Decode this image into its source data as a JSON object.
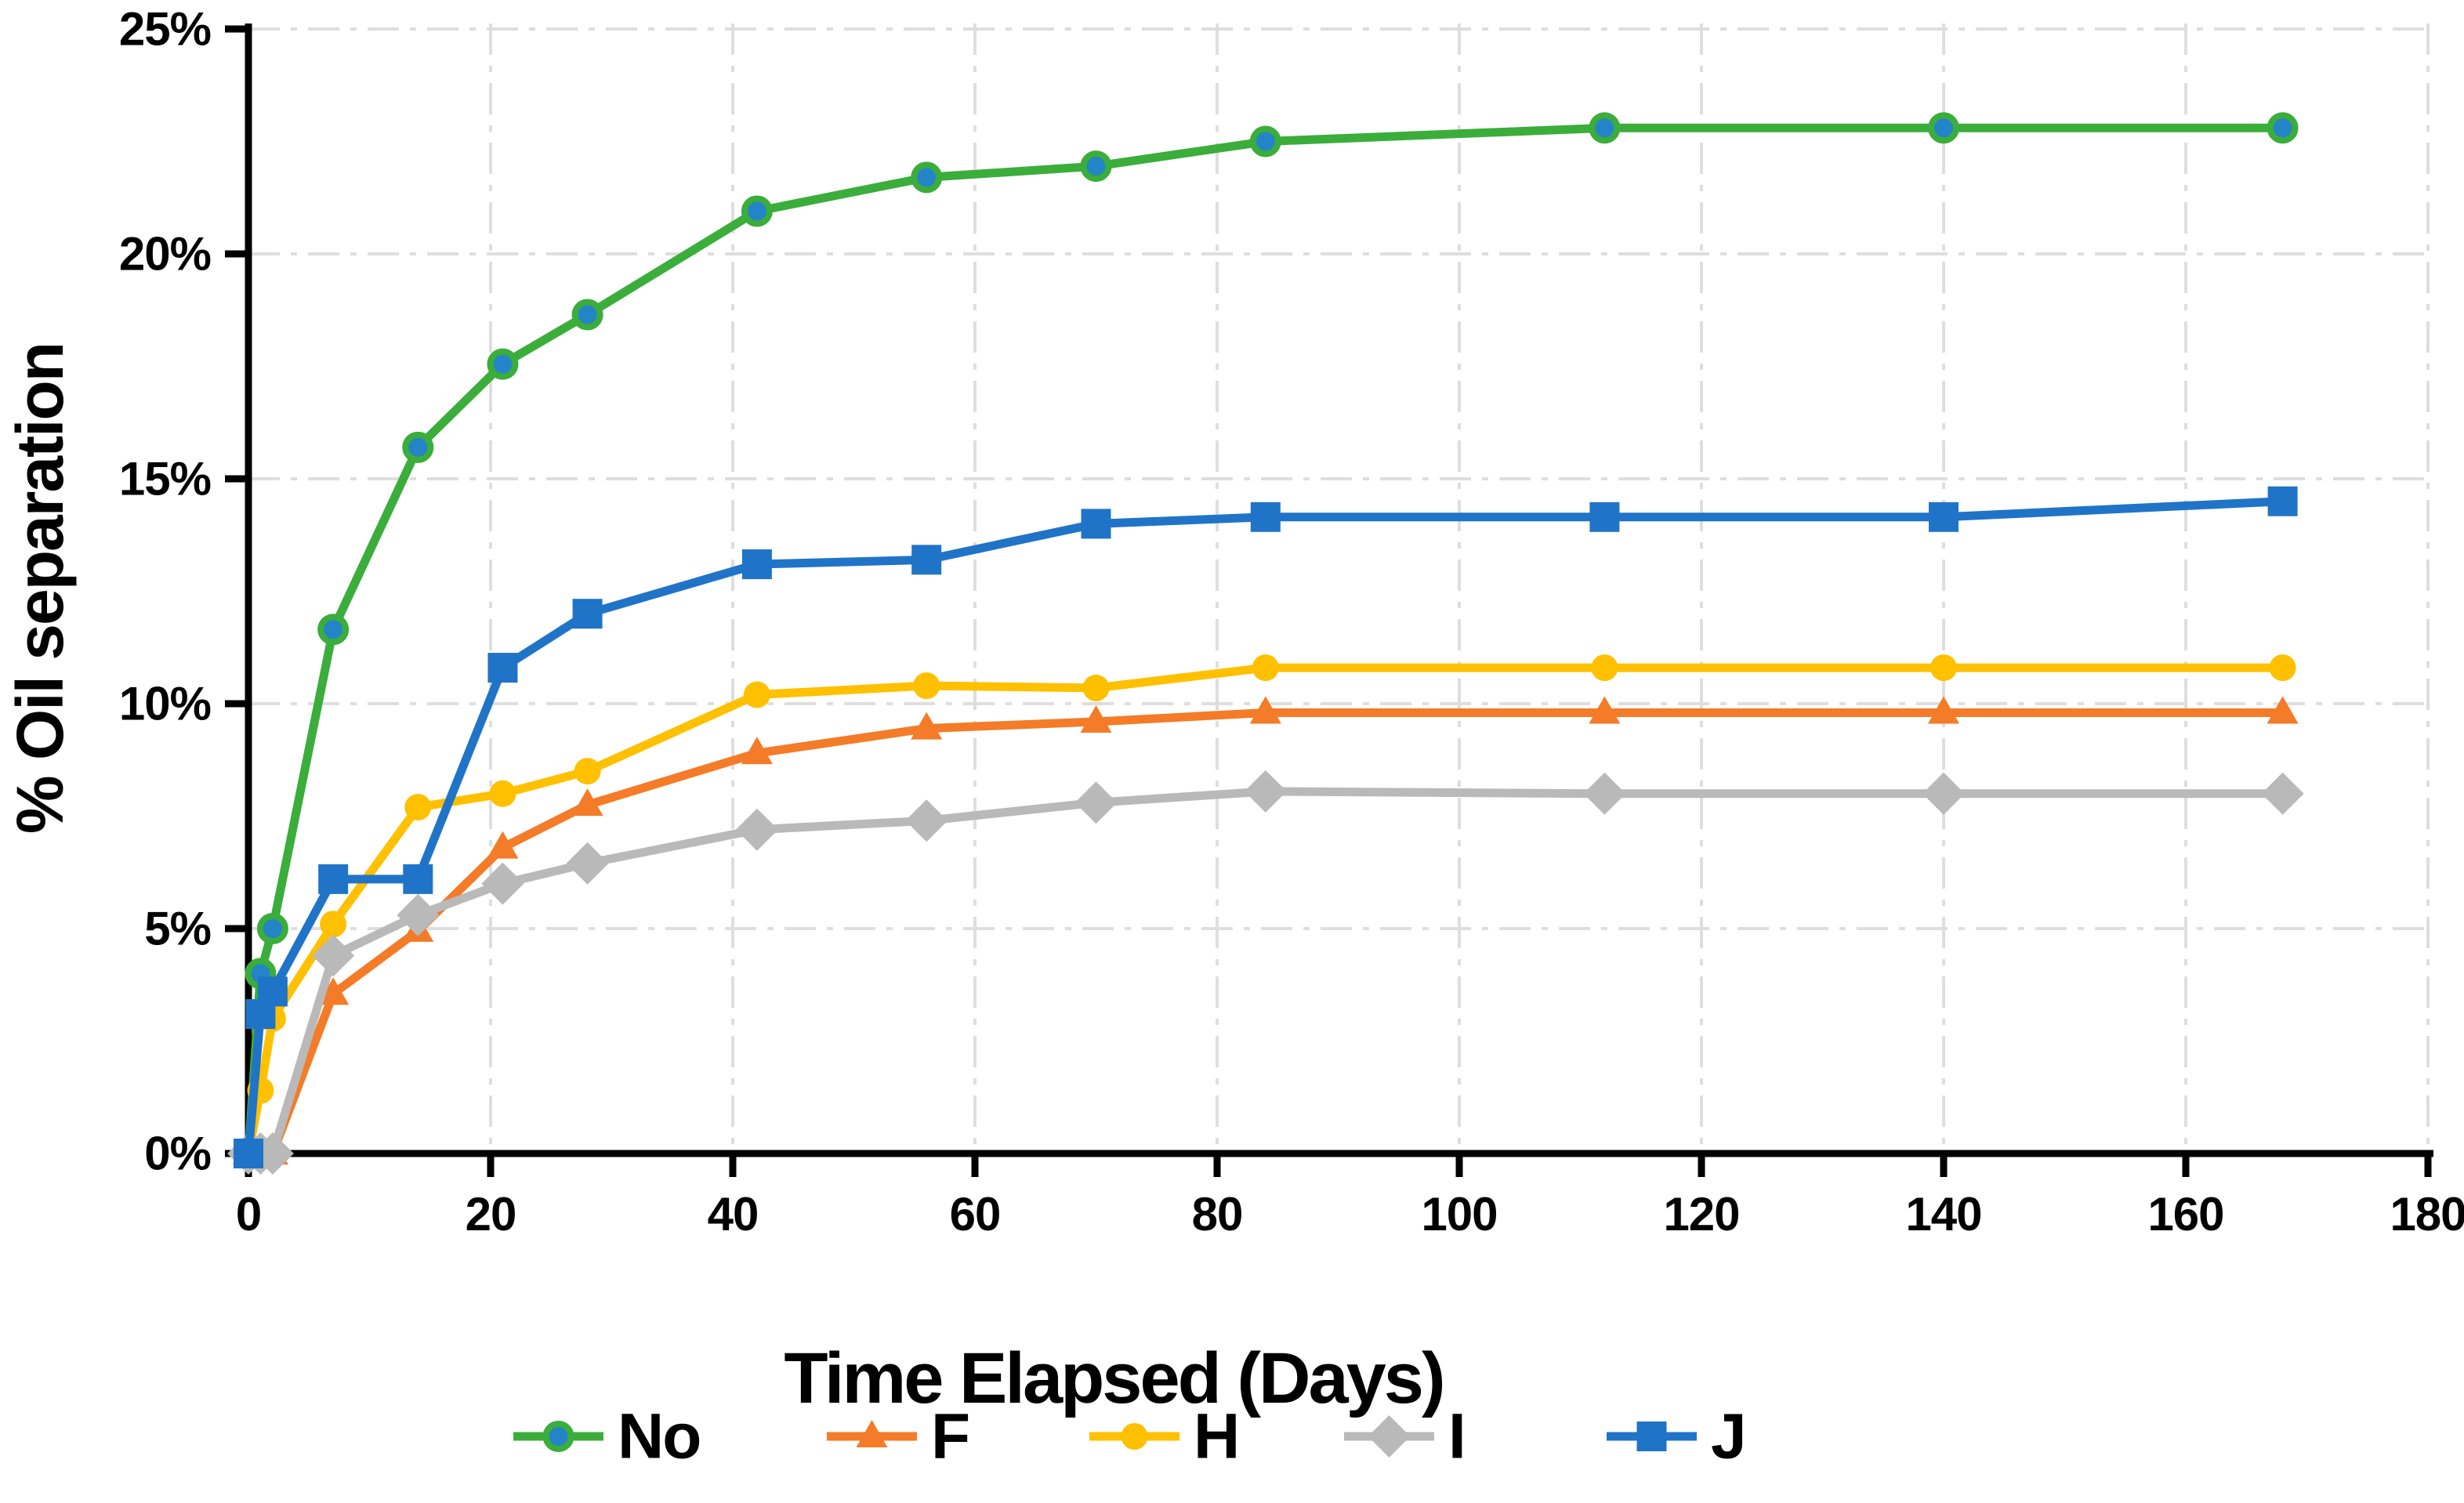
{
  "page": {
    "background": "#FFFFFF"
  },
  "chart_data": {
    "type": "line",
    "title": "",
    "xlabel": "Time Elapsed (Days)",
    "ylabel": "% Oil separation",
    "xlim": [
      0,
      180
    ],
    "ylim": [
      0,
      25
    ],
    "x_ticks": [
      0,
      20,
      40,
      60,
      80,
      100,
      120,
      140,
      160,
      180
    ],
    "y_ticks": [
      0,
      5,
      10,
      15,
      20,
      25
    ],
    "y_tick_labels": [
      "0%",
      "5%",
      "10%",
      "15%",
      "20%",
      "25%"
    ],
    "grid": "both",
    "gridline_color": "#DEDEDE",
    "axis_color": "#000000",
    "legend_position": "bottom",
    "x": [
      0,
      1,
      2,
      7,
      14,
      21,
      28,
      42,
      56,
      70,
      84,
      112,
      140,
      168
    ],
    "series": [
      {
        "name": "No",
        "color": "#3BAD3B",
        "marker": "circle",
        "marker_fill": "#2484C8",
        "values": [
          0,
          4.0,
          5.0,
          11.65,
          15.7,
          17.55,
          18.65,
          20.95,
          21.7,
          21.95,
          22.5,
          22.8,
          22.8,
          22.8
        ]
      },
      {
        "name": "F",
        "color": "#F47B28",
        "marker": "triangle",
        "marker_fill": "#F47B28",
        "values": [
          0,
          0,
          0,
          3.55,
          4.95,
          6.8,
          7.75,
          8.9,
          9.45,
          9.6,
          9.8,
          9.8,
          9.8,
          9.8
        ]
      },
      {
        "name": "H",
        "color": "#FFC000",
        "marker": "circle",
        "marker_fill": "#FFC000",
        "values": [
          0,
          1.4,
          3.0,
          5.1,
          7.7,
          8.0,
          8.5,
          10.2,
          10.4,
          10.35,
          10.8,
          10.8,
          10.8,
          10.8
        ]
      },
      {
        "name": "I",
        "color": "#B9B9B9",
        "marker": "diamond",
        "marker_fill": "#B9B9B9",
        "values": [
          0,
          0,
          0,
          4.4,
          5.3,
          6.0,
          6.45,
          7.2,
          7.4,
          7.8,
          8.05,
          8.0,
          8.0,
          8.0
        ]
      },
      {
        "name": "J",
        "color": "#2074C7",
        "marker": "square",
        "marker_fill": "#2074C7",
        "values": [
          0,
          3.1,
          3.6,
          6.1,
          6.1,
          10.8,
          12.0,
          13.1,
          13.2,
          14.0,
          14.15,
          14.15,
          14.15,
          14.5
        ]
      }
    ]
  }
}
